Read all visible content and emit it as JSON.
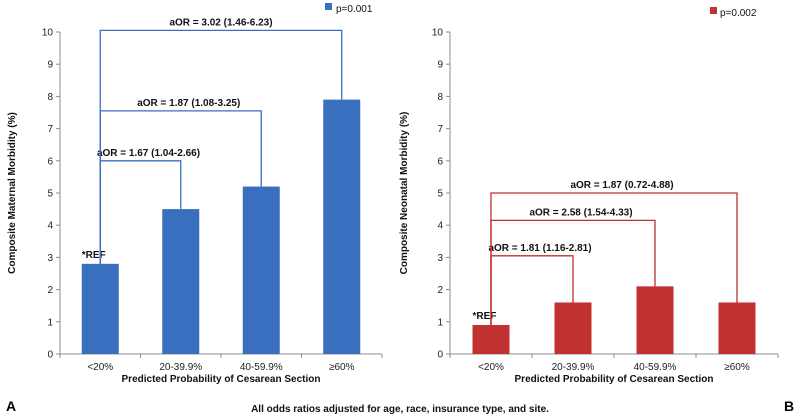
{
  "footnote": "All odds ratios adjusted for age, race, insurance type, and site.",
  "chart_data": [
    {
      "type": "bar",
      "panel_label": "A",
      "title": "",
      "xlabel": "Predicted Probability of Cesarean Section",
      "ylabel": "Composite Maternal Morbidity (%)",
      "ylim": [
        0,
        10
      ],
      "yticks": [
        "0",
        "1",
        "2",
        "3",
        "4",
        "5",
        "6",
        "7",
        "8",
        "9",
        "10"
      ],
      "categories": [
        "<20%",
        "20-39.9%",
        "40-59.9%",
        "≥60%"
      ],
      "values": [
        2.8,
        4.5,
        5.2,
        7.9
      ],
      "color": "#3a6fbf",
      "reference_label": "*REF",
      "legend": "p=0.001",
      "legend_placement": "top-right",
      "brackets": [
        {
          "label": "aOR = 1.67 (1.04-2.66)",
          "from": 0,
          "to": 1,
          "level": 6.0
        },
        {
          "label": "aOR = 1.87 (1.08-3.25)",
          "from": 0,
          "to": 2,
          "level": 7.55
        },
        {
          "label": "aOR = 3.02 (1.46-6.23)",
          "from": 0,
          "to": 3,
          "level": 10.05
        }
      ]
    },
    {
      "type": "bar",
      "panel_label": "B",
      "title": "",
      "xlabel": "Predicted Probability of Cesarean Section",
      "ylabel": "Composite Neonatal Morbidity (%)",
      "ylim": [
        0,
        10
      ],
      "yticks": [
        "0",
        "1",
        "2",
        "3",
        "4",
        "5",
        "6",
        "7",
        "8",
        "9",
        "10"
      ],
      "categories": [
        "<20%",
        "20-39.9%",
        "40-59.9%",
        "≥60%"
      ],
      "values": [
        0.9,
        1.6,
        2.1,
        1.6
      ],
      "color": "#c0312f",
      "reference_label": "*REF",
      "legend": "p=0.002",
      "legend_placement": "top-right",
      "brackets": [
        {
          "label": "aOR = 1.81 (1.16-2.81)",
          "from": 0,
          "to": 1,
          "level": 3.05
        },
        {
          "label": "aOR = 2.58 (1.54-4.33)",
          "from": 0,
          "to": 2,
          "level": 4.15
        },
        {
          "label": "aOR = 1.87 (0.72-4.88)",
          "from": 0,
          "to": 3,
          "level": 5.0
        }
      ]
    }
  ]
}
